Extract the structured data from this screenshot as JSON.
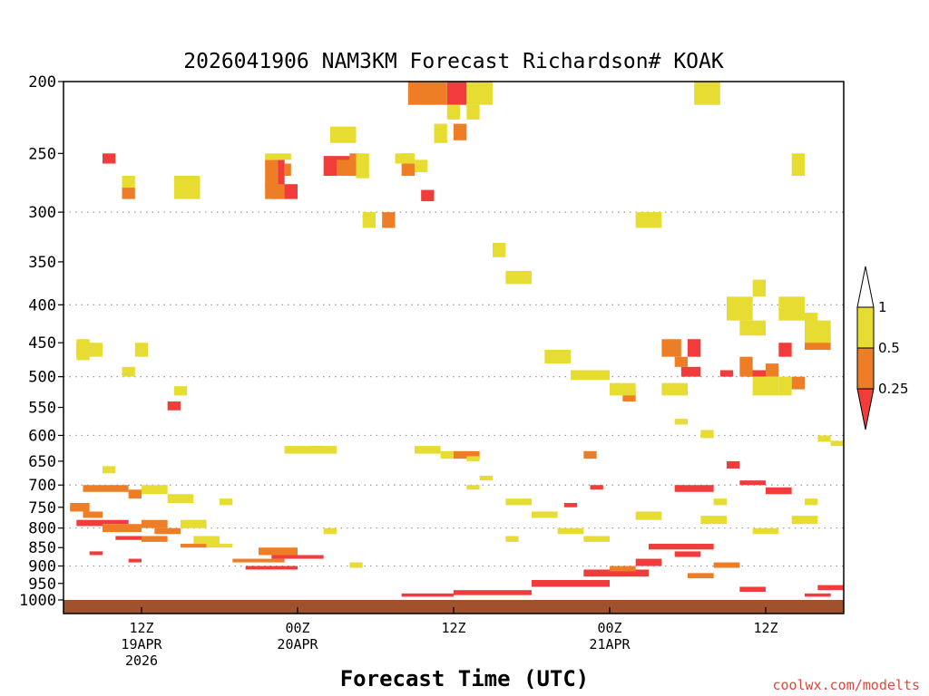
{
  "chart_data": {
    "type": "heatmap",
    "title": "2026041906 NAM3KM Forecast Richardson# KOAK",
    "xlabel": "Forecast Time (UTC)",
    "ylabel": "",
    "credit": "coolwx.com/modelts",
    "x_unit": "forecast hour",
    "x_range": [
      0,
      60
    ],
    "y_range_hPa": [
      1000,
      200
    ],
    "y_ticks": [
      200,
      250,
      300,
      350,
      400,
      450,
      500,
      550,
      600,
      650,
      700,
      750,
      800,
      850,
      900,
      950,
      1000
    ],
    "y_tick_labels": [
      "200",
      "250",
      "300",
      "350",
      "400",
      "450",
      "500",
      "550",
      "600",
      "650",
      "700",
      "750",
      "800",
      "850",
      "900",
      "950",
      "1000"
    ],
    "gridlines_hPa": [
      300,
      400,
      500,
      600,
      700,
      800,
      900
    ],
    "x_ticks": [
      {
        "hour": 6,
        "lines": [
          "12Z",
          "19APR",
          "2026"
        ]
      },
      {
        "hour": 18,
        "lines": [
          "00Z",
          "20APR"
        ]
      },
      {
        "hour": 30,
        "lines": [
          "12Z"
        ]
      },
      {
        "hour": 42,
        "lines": [
          "00Z",
          "21APR"
        ]
      },
      {
        "hour": 54,
        "lines": [
          "12Z"
        ]
      }
    ],
    "legend": {
      "position": "right",
      "labels": [
        "1",
        "0.5",
        "0.25"
      ],
      "bins": [
        {
          "name": "Ri < 0.25",
          "color": "#f23c3c"
        },
        {
          "name": "0.25 to 0.5",
          "color": "#ee7e26"
        },
        {
          "name": "0.5 to 1",
          "color": "#e6dc32"
        },
        {
          "name": "> 1",
          "color": "#ffffff"
        }
      ]
    },
    "ground_color": "#a0522d",
    "series": [
      {
        "name": "Ri < 0.25",
        "color": "#f23c3c",
        "cells": [
          [
            29.5,
            31,
            200,
            215
          ],
          [
            3,
            4,
            250,
            258
          ],
          [
            1,
            2,
            450,
            470
          ],
          [
            8,
            9,
            540,
            555
          ],
          [
            16,
            17,
            255,
            278
          ],
          [
            16,
            18,
            275,
            288
          ],
          [
            20,
            22,
            252,
            268
          ],
          [
            27.5,
            28.5,
            280,
            290
          ],
          [
            38.5,
            39.5,
            740,
            750
          ],
          [
            40.5,
            41.5,
            700,
            710
          ],
          [
            48,
            49,
            445,
            470
          ],
          [
            47.5,
            49,
            485,
            500
          ],
          [
            50.5,
            51.5,
            490,
            500
          ],
          [
            55,
            56,
            450,
            470
          ],
          [
            52.5,
            54,
            490,
            500
          ],
          [
            51,
            52,
            650,
            665
          ],
          [
            47,
            50,
            700,
            715
          ],
          [
            52,
            54,
            690,
            700
          ],
          [
            54,
            56,
            705,
            720
          ],
          [
            44,
            46,
            880,
            900
          ],
          [
            40,
            45,
            910,
            930
          ],
          [
            36,
            42,
            940,
            960
          ],
          [
            1,
            3,
            780,
            795
          ],
          [
            3,
            5,
            780,
            790
          ],
          [
            4,
            6,
            820,
            830
          ],
          [
            2,
            3,
            860,
            870
          ],
          [
            5,
            6,
            880,
            890
          ],
          [
            14,
            18,
            900,
            910
          ],
          [
            16,
            20,
            870,
            880
          ],
          [
            26,
            30,
            980,
            990
          ],
          [
            30,
            36,
            970,
            985
          ],
          [
            45,
            50,
            840,
            855
          ],
          [
            47,
            49,
            860,
            875
          ],
          [
            52,
            54,
            960,
            975
          ],
          [
            57,
            59,
            980,
            990
          ],
          [
            58,
            60,
            955,
            970
          ]
        ]
      },
      {
        "name": "0.25 to 0.5",
        "color": "#ee7e26",
        "cells": [
          [
            26.5,
            29.5,
            200,
            215
          ],
          [
            30,
            31,
            228,
            240
          ],
          [
            15.5,
            16.5,
            255,
            278
          ],
          [
            15.5,
            17,
            275,
            288
          ],
          [
            4.5,
            5.5,
            278,
            288
          ],
          [
            19,
            20,
            620,
            632
          ],
          [
            22,
            22.8,
            250,
            262
          ],
          [
            17,
            17.5,
            258,
            268
          ],
          [
            21,
            22.5,
            255,
            268
          ],
          [
            24.5,
            25.5,
            300,
            315
          ],
          [
            26,
            27,
            250,
            268
          ],
          [
            43,
            44,
            520,
            540
          ],
          [
            46,
            47.5,
            445,
            470
          ],
          [
            47,
            48,
            470,
            485
          ],
          [
            52,
            53,
            470,
            500
          ],
          [
            54,
            55,
            480,
            500
          ],
          [
            56,
            57,
            500,
            520
          ],
          [
            57,
            59,
            440,
            460
          ],
          [
            1.5,
            5,
            700,
            715
          ],
          [
            5,
            6,
            710,
            730
          ],
          [
            0.5,
            2,
            740,
            760
          ],
          [
            1.5,
            3,
            760,
            775
          ],
          [
            3,
            6,
            790,
            810
          ],
          [
            6,
            8,
            780,
            800
          ],
          [
            7,
            9,
            800,
            815
          ],
          [
            6,
            8,
            820,
            835
          ],
          [
            9,
            11,
            840,
            850
          ],
          [
            15,
            18,
            850,
            870
          ],
          [
            13,
            17,
            880,
            890
          ],
          [
            30,
            32,
            630,
            645
          ],
          [
            40,
            41,
            630,
            645
          ],
          [
            42,
            44,
            900,
            915
          ],
          [
            50,
            52,
            890,
            905
          ],
          [
            48,
            50,
            920,
            935
          ]
        ]
      },
      {
        "name": "0.5 to 1",
        "color": "#e6dc32",
        "cells": [
          [
            31,
            33,
            200,
            215
          ],
          [
            31,
            32,
            215,
            225
          ],
          [
            29.5,
            30.5,
            215,
            225
          ],
          [
            28.5,
            29.5,
            228,
            242
          ],
          [
            20.5,
            22.5,
            230,
            242
          ],
          [
            22.5,
            23.5,
            250,
            270
          ],
          [
            15.5,
            17.5,
            250,
            255
          ],
          [
            4.5,
            5.5,
            268,
            278
          ],
          [
            8.5,
            10.5,
            268,
            288
          ],
          [
            25.5,
            27,
            250,
            258
          ],
          [
            27,
            28,
            255,
            265
          ],
          [
            23,
            24,
            300,
            315
          ],
          [
            33,
            34,
            330,
            345
          ],
          [
            34,
            36,
            360,
            375
          ],
          [
            44,
            46,
            300,
            315
          ],
          [
            48.5,
            50.5,
            200,
            215
          ],
          [
            56,
            57,
            250,
            268
          ],
          [
            1,
            2,
            445,
            475
          ],
          [
            2,
            3,
            450,
            470
          ],
          [
            5.5,
            6.5,
            450,
            470
          ],
          [
            4.5,
            5.5,
            485,
            500
          ],
          [
            8.5,
            9.5,
            515,
            530
          ],
          [
            17,
            21,
            620,
            635
          ],
          [
            27,
            29,
            620,
            635
          ],
          [
            29,
            30,
            630,
            645
          ],
          [
            31,
            32,
            640,
            650
          ],
          [
            32,
            33,
            680,
            690
          ],
          [
            31,
            32,
            700,
            710
          ],
          [
            37,
            39,
            460,
            480
          ],
          [
            39,
            42,
            490,
            505
          ],
          [
            42,
            44,
            510,
            530
          ],
          [
            46,
            48,
            510,
            530
          ],
          [
            47,
            48,
            570,
            580
          ],
          [
            49,
            50,
            590,
            605
          ],
          [
            51,
            53,
            390,
            420
          ],
          [
            52,
            54,
            420,
            440
          ],
          [
            53,
            54,
            370,
            390
          ],
          [
            55,
            57,
            390,
            420
          ],
          [
            57,
            58,
            410,
            430
          ],
          [
            57,
            59,
            420,
            450
          ],
          [
            55,
            56,
            500,
            530
          ],
          [
            53,
            55,
            500,
            530
          ],
          [
            58,
            59,
            600,
            612
          ],
          [
            59,
            60,
            610,
            620
          ],
          [
            3,
            4,
            660,
            675
          ],
          [
            6,
            8,
            700,
            720
          ],
          [
            8,
            10,
            720,
            740
          ],
          [
            12,
            13,
            730,
            745
          ],
          [
            9,
            11,
            780,
            800
          ],
          [
            10,
            12,
            820,
            840
          ],
          [
            11,
            13,
            840,
            850
          ],
          [
            20,
            21,
            800,
            815
          ],
          [
            22,
            23,
            890,
            905
          ],
          [
            34,
            36,
            730,
            745
          ],
          [
            36,
            38,
            760,
            775
          ],
          [
            44,
            46,
            760,
            780
          ],
          [
            50,
            51,
            730,
            745
          ],
          [
            49,
            51,
            770,
            790
          ],
          [
            53,
            55,
            800,
            815
          ],
          [
            56,
            58,
            770,
            790
          ],
          [
            57,
            58,
            730,
            745
          ],
          [
            38,
            40,
            800,
            815
          ],
          [
            34,
            35,
            820,
            835
          ],
          [
            40,
            42,
            820,
            835
          ]
        ]
      }
    ]
  }
}
